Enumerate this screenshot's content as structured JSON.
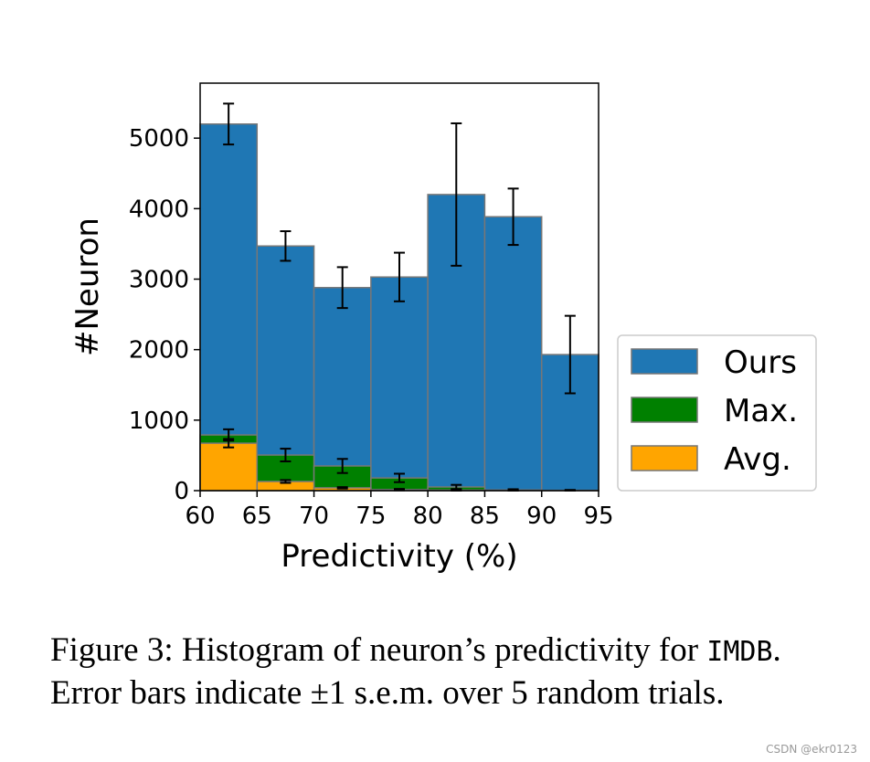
{
  "chart_data": {
    "type": "histogram",
    "xlabel": "Predictivity (%)",
    "ylabel": "#Neuron",
    "bins": [
      60,
      65,
      70,
      75,
      80,
      85,
      90,
      95
    ],
    "series": [
      {
        "name": "Ours",
        "color": "#1f77b4",
        "values": [
          5200,
          3470,
          2880,
          3030,
          4200,
          3885,
          1930
        ],
        "errors": [
          290,
          210,
          290,
          345,
          1010,
          400,
          550
        ]
      },
      {
        "name": "Max.",
        "color": "#008000",
        "values": [
          790,
          505,
          350,
          180,
          52,
          10,
          5
        ],
        "errors": [
          80,
          90,
          100,
          60,
          30,
          10,
          5
        ]
      },
      {
        "name": "Avg.",
        "color": "#ffa500",
        "values": [
          673,
          130,
          40,
          15,
          10,
          5,
          2
        ],
        "errors": [
          60,
          20,
          10,
          10,
          10,
          5,
          2
        ]
      }
    ],
    "xlim": [
      60,
      95
    ],
    "ylim": [
      0,
      5780
    ],
    "xticks": [
      60,
      65,
      70,
      75,
      80,
      85,
      90,
      95
    ],
    "yticks": [
      0,
      1000,
      2000,
      3000,
      4000,
      5000
    ],
    "legend": "outside-right"
  },
  "caption": {
    "line1_prefix": "Figure 3: Histogram of neuron’s predictivity for ",
    "line1_code": "IMDB",
    "line1_suffix": ".",
    "line2": "Error bars indicate ±1 s.e.m. over 5 random trials."
  },
  "watermark": "CSDN @ekr0123"
}
